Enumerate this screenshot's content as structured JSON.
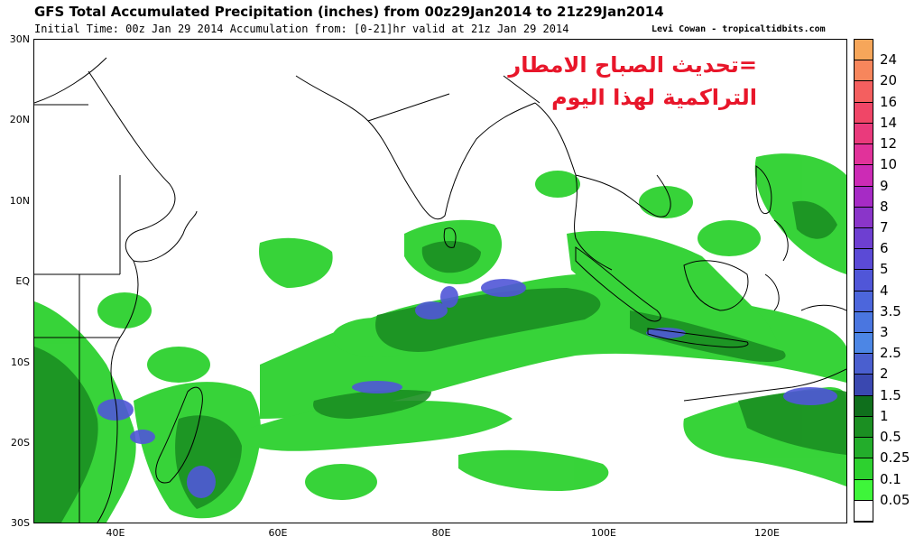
{
  "header": {
    "title": "GFS Total Accumulated Precipitation (inches) from 00z29Jan2014 to 21z29Jan2014",
    "subtitle": "Initial Time: 00z Jan 29 2014 Accumulation from: [0-21]hr valid at 21z Jan 29 2014",
    "credit": "Levi Cowan - tropicaltidbits.com"
  },
  "overlay": {
    "line1": "=تحديث الصباح الامطار",
    "line2": "التراكمية لهذا اليوم",
    "color": "#e8162a"
  },
  "map": {
    "lon_range": [
      30,
      130
    ],
    "lat_range": [
      -30,
      30
    ],
    "lat_labels": [
      "30N",
      "20N",
      "10N",
      "EQ",
      "10S",
      "20S",
      "30S"
    ],
    "lon_labels": [
      "40E",
      "60E",
      "80E",
      "100E",
      "120E"
    ]
  },
  "legend": {
    "levels": [
      "24",
      "20",
      "16",
      "14",
      "12",
      "10",
      "9",
      "8",
      "7",
      "6",
      "5",
      "4",
      "3.5",
      "3",
      "2.5",
      "2",
      "1.5",
      "1",
      "0.5",
      "0.25",
      "0.1",
      "0.05"
    ],
    "colors": [
      "#f6a65a",
      "#f7865c",
      "#f45f5f",
      "#f04667",
      "#ea3a7c",
      "#e1329a",
      "#cc2bb5",
      "#a62bc5",
      "#8a35c9",
      "#6e3fd1",
      "#5b4ad6",
      "#5056d8",
      "#4c66dc",
      "#4a76e0",
      "#4c86e5",
      "#4a5fcf",
      "#3a48b0",
      "#0f6f1c",
      "#1b8f22",
      "#23ad2b",
      "#2dd12f",
      "#3ef53a"
    ],
    "bottom_color": "#ffffff"
  }
}
